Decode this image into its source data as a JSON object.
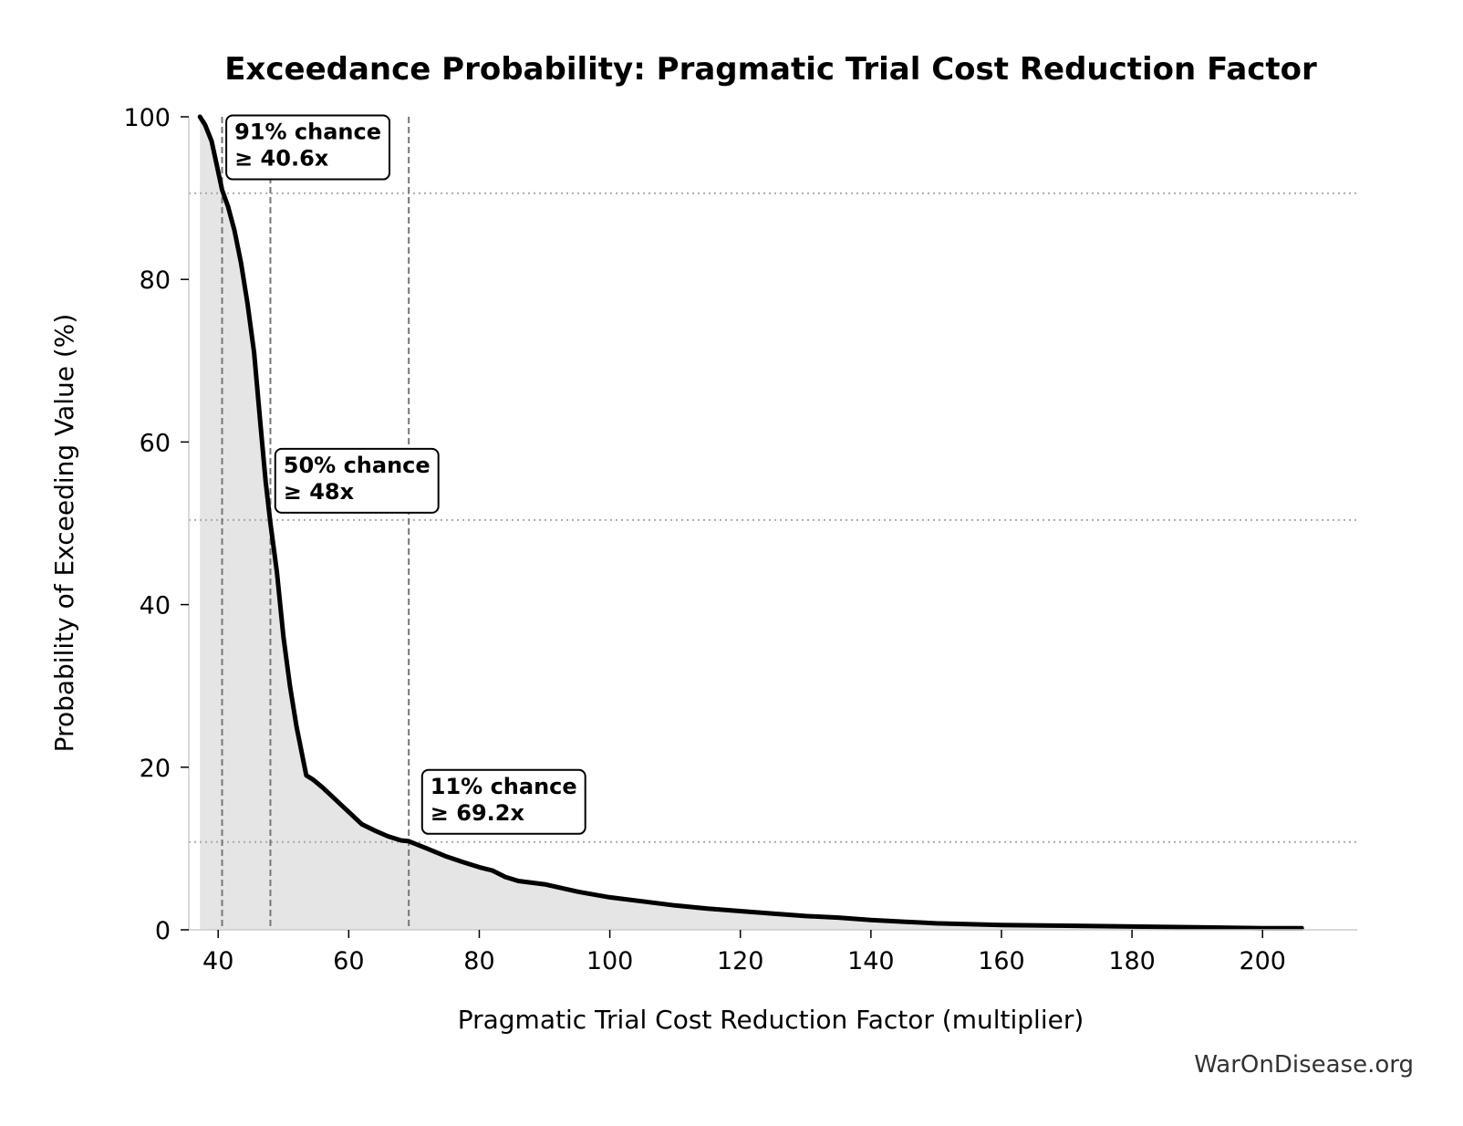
{
  "chart_data": {
    "type": "area",
    "title": "Exceedance Probability: Pragmatic Trial Cost Reduction Factor",
    "xlabel": "Pragmatic Trial Cost Reduction Factor (multiplier)",
    "ylabel": "Probability of Exceeding Value (%)",
    "xlim": [
      35.5,
      214.5
    ],
    "ylim": [
      0,
      100
    ],
    "x_ticks": [
      40,
      60,
      80,
      100,
      120,
      140,
      160,
      180,
      200
    ],
    "y_ticks": [
      0,
      20,
      40,
      60,
      80,
      100
    ],
    "grid": false,
    "legend": "none",
    "series": [
      {
        "x": [
          37.2,
          38.0,
          39.0,
          39.8,
          40.6,
          41.5,
          42.5,
          43.5,
          44.5,
          45.5,
          46.5,
          47.3,
          48.0,
          49.0,
          50.0,
          51.0,
          52.0,
          53.5,
          54.5,
          56.0,
          58.0,
          60.0,
          62.0,
          64.0,
          66.0,
          68.0,
          69.2,
          72.0,
          75.0,
          78.0,
          80.0,
          82.0,
          84.0,
          86.0,
          90.0,
          95.0,
          100.0,
          105.0,
          110.0,
          115.0,
          120.0,
          125.0,
          130.0,
          135.0,
          140.0,
          145.0,
          150.0,
          160.0,
          170.0,
          180.0,
          190.0,
          200.0,
          206.0
        ],
        "y": [
          100,
          99,
          97,
          94,
          91,
          89,
          86,
          82,
          77,
          71,
          62,
          55,
          50,
          44,
          36,
          30,
          25,
          19,
          18.5,
          17.5,
          16,
          14.5,
          13,
          12.2,
          11.5,
          11,
          10.9,
          10,
          9,
          8.2,
          7.7,
          7.3,
          6.5,
          6.0,
          5.6,
          4.7,
          4.0,
          3.5,
          3.0,
          2.6,
          2.3,
          2.0,
          1.7,
          1.5,
          1.2,
          1.0,
          0.8,
          0.6,
          0.5,
          0.4,
          0.3,
          0.2,
          0.2
        ],
        "color": "#000000",
        "fill_color": "#e5e5e5"
      }
    ],
    "reference_lines": {
      "vertical_x": [
        40.6,
        48.0,
        69.2
      ],
      "horizontal_y": [
        90.6,
        50.4,
        10.8
      ],
      "vertical_color": "#777777",
      "horizontal_color": "#aaaaaa"
    },
    "annotations": [
      {
        "line1": "91% chance",
        "line2": "≥ 40.6x",
        "x": 42.5,
        "y": 95
      },
      {
        "line1": "50% chance",
        "line2": "≥ 48x",
        "x": 50.0,
        "y": 54
      },
      {
        "line1": "11% chance",
        "line2": "≥ 69.2x",
        "x": 72.5,
        "y": 14.5
      }
    ]
  },
  "watermark": "WarOnDisease.org"
}
